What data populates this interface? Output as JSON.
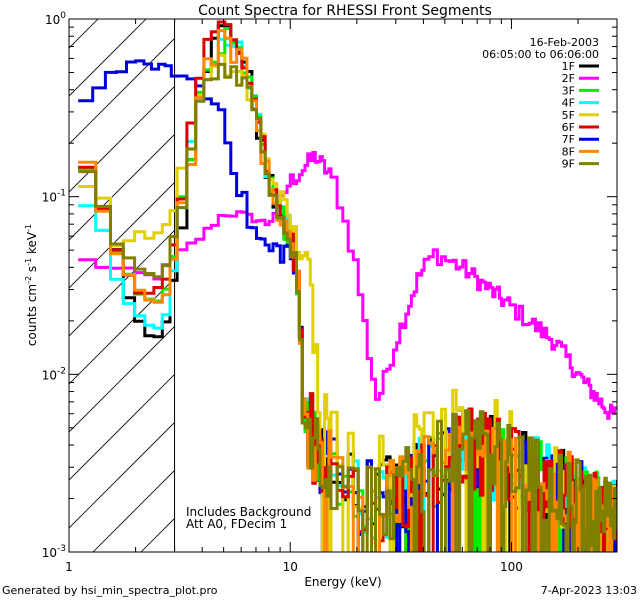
{
  "chart_data": {
    "type": "line",
    "title": "Count Spectra for RHESSI Front Segments",
    "xlabel": "Energy (keV)",
    "ylabel_main": "counts cm",
    "ylabel_sup1": "-2",
    "ylabel_mid": " s",
    "ylabel_sup2": "-1",
    "ylabel_end": " keV",
    "ylabel_sup3": "-1",
    "xscale": "log",
    "yscale": "log",
    "xlim": [
      1,
      300
    ],
    "ylim": [
      0.001,
      1
    ],
    "x_ticks": [
      {
        "value": 1,
        "label": "1"
      },
      {
        "value": 10,
        "label": "10"
      },
      {
        "value": 100,
        "label": "100"
      }
    ],
    "y_ticks": [
      {
        "value": 0.001,
        "base": "10",
        "exp": "-3"
      },
      {
        "value": 0.01,
        "base": "10",
        "exp": "-2"
      },
      {
        "value": 0.1,
        "base": "10",
        "exp": "-1"
      },
      {
        "value": 1,
        "base": "10",
        "exp": "0"
      }
    ],
    "hatched_region": {
      "xmin": 1,
      "xmax": 3
    },
    "date": "16-Feb-2003",
    "time_range": "06:05:00 to 06:06:00",
    "notes": [
      "Includes Background",
      "Att A0, FDecim 1"
    ],
    "footer_left": "Generated by hsi_min_spectra_plot.pro",
    "footer_right": "7-Apr-2023 13:03",
    "series": [
      {
        "name": "1F",
        "color": "#000000"
      },
      {
        "name": "2F",
        "color": "#ff00ff"
      },
      {
        "name": "3F",
        "color": "#00ee00"
      },
      {
        "name": "4F",
        "color": "#00ffff"
      },
      {
        "name": "5F",
        "color": "#e0d000"
      },
      {
        "name": "6F",
        "color": "#dd0000"
      },
      {
        "name": "7F",
        "color": "#0000dd"
      },
      {
        "name": "8F",
        "color": "#ff8800"
      },
      {
        "name": "9F",
        "color": "#808000"
      }
    ],
    "profiles": {
      "1F": [
        [
          1.1,
          0.2
        ],
        [
          1.4,
          0.09
        ],
        [
          1.7,
          0.045
        ],
        [
          2,
          0.02
        ],
        [
          2.4,
          0.016
        ],
        [
          2.8,
          0.02
        ],
        [
          3.4,
          0.12
        ],
        [
          4,
          0.5
        ],
        [
          5,
          0.9
        ],
        [
          6,
          0.7
        ],
        [
          7,
          0.3
        ],
        [
          8,
          0.12
        ],
        [
          9,
          0.08
        ],
        [
          10,
          0.06
        ],
        [
          11,
          0.03
        ],
        [
          11.5,
          0.006
        ],
        [
          13,
          0.004
        ],
        [
          20,
          0.002
        ],
        [
          30,
          0.002
        ],
        [
          60,
          0.004
        ],
        [
          100,
          0.003
        ],
        [
          200,
          0.002
        ],
        [
          280,
          0.0015
        ]
      ],
      "2F": [
        [
          1.1,
          0.045
        ],
        [
          1.5,
          0.04
        ],
        [
          2.5,
          0.035
        ],
        [
          3,
          0.045
        ],
        [
          4,
          0.06
        ],
        [
          5,
          0.08
        ],
        [
          6,
          0.08
        ],
        [
          8,
          0.07
        ],
        [
          10,
          0.12
        ],
        [
          13,
          0.17
        ],
        [
          16,
          0.12
        ],
        [
          20,
          0.04
        ],
        [
          23,
          0.012
        ],
        [
          25,
          0.007
        ],
        [
          30,
          0.015
        ],
        [
          38,
          0.035
        ],
        [
          45,
          0.048
        ],
        [
          60,
          0.04
        ],
        [
          80,
          0.03
        ],
        [
          120,
          0.02
        ],
        [
          160,
          0.015
        ],
        [
          200,
          0.01
        ],
        [
          280,
          0.006
        ]
      ],
      "3F": [
        [
          1.1,
          0.2
        ],
        [
          1.4,
          0.09
        ],
        [
          1.7,
          0.045
        ],
        [
          2,
          0.03
        ],
        [
          2.4,
          0.025
        ],
        [
          2.8,
          0.03
        ],
        [
          3.4,
          0.12
        ],
        [
          4,
          0.45
        ],
        [
          5,
          0.8
        ],
        [
          6,
          0.6
        ],
        [
          7,
          0.3
        ],
        [
          8,
          0.12
        ],
        [
          9,
          0.08
        ],
        [
          10,
          0.06
        ],
        [
          11,
          0.03
        ],
        [
          11.5,
          0.006
        ],
        [
          13,
          0.004
        ],
        [
          20,
          0.002
        ],
        [
          30,
          0.002
        ],
        [
          60,
          0.004
        ],
        [
          100,
          0.003
        ],
        [
          200,
          0.002
        ],
        [
          280,
          0.0015
        ]
      ],
      "4F": [
        [
          1.1,
          0.1
        ],
        [
          1.4,
          0.07
        ],
        [
          1.7,
          0.03
        ],
        [
          2,
          0.022
        ],
        [
          2.4,
          0.018
        ],
        [
          2.8,
          0.022
        ],
        [
          3.4,
          0.12
        ],
        [
          4,
          0.45
        ],
        [
          5,
          0.8
        ],
        [
          6,
          0.65
        ],
        [
          7,
          0.3
        ],
        [
          8,
          0.12
        ],
        [
          9,
          0.08
        ],
        [
          10,
          0.06
        ],
        [
          11,
          0.03
        ],
        [
          11.5,
          0.006
        ],
        [
          13,
          0.004
        ],
        [
          20,
          0.002
        ],
        [
          30,
          0.002
        ],
        [
          60,
          0.004
        ],
        [
          100,
          0.003
        ],
        [
          200,
          0.002
        ],
        [
          280,
          0.0015
        ]
      ],
      "5F": [
        [
          1.1,
          0.13
        ],
        [
          1.4,
          0.1
        ],
        [
          1.7,
          0.05
        ],
        [
          2,
          0.06
        ],
        [
          2.4,
          0.06
        ],
        [
          2.8,
          0.07
        ],
        [
          3.4,
          0.15
        ],
        [
          4,
          0.4
        ],
        [
          5,
          0.55
        ],
        [
          6,
          0.5
        ],
        [
          7,
          0.3
        ],
        [
          8,
          0.15
        ],
        [
          9,
          0.1
        ],
        [
          10,
          0.07
        ],
        [
          12,
          0.04
        ],
        [
          13,
          0.012
        ],
        [
          14,
          0.006
        ],
        [
          20,
          0.003
        ],
        [
          30,
          0.003
        ],
        [
          60,
          0.005
        ],
        [
          100,
          0.004
        ],
        [
          200,
          0.002
        ],
        [
          280,
          0.0015
        ]
      ],
      "6F": [
        [
          1.1,
          0.2
        ],
        [
          1.4,
          0.09
        ],
        [
          1.7,
          0.045
        ],
        [
          2,
          0.03
        ],
        [
          2.4,
          0.028
        ],
        [
          2.8,
          0.035
        ],
        [
          3.4,
          0.15
        ],
        [
          4,
          0.6
        ],
        [
          5,
          0.9
        ],
        [
          6,
          0.75
        ],
        [
          7,
          0.35
        ],
        [
          8,
          0.13
        ],
        [
          9,
          0.08
        ],
        [
          10,
          0.06
        ],
        [
          11,
          0.03
        ],
        [
          11.5,
          0.006
        ],
        [
          13,
          0.004
        ],
        [
          20,
          0.002
        ],
        [
          30,
          0.002
        ],
        [
          60,
          0.004
        ],
        [
          100,
          0.003
        ],
        [
          200,
          0.002
        ],
        [
          280,
          0.0015
        ]
      ],
      "7F": [
        [
          1.1,
          0.3
        ],
        [
          1.4,
          0.45
        ],
        [
          1.7,
          0.52
        ],
        [
          2,
          0.55
        ],
        [
          2.5,
          0.55
        ],
        [
          3,
          0.5
        ],
        [
          4,
          0.4
        ],
        [
          5,
          0.3
        ],
        [
          6,
          0.1
        ],
        [
          7,
          0.06
        ],
        [
          8,
          0.05
        ],
        [
          9,
          0.05
        ],
        [
          10,
          0.05
        ],
        [
          11,
          0.03
        ],
        [
          11.5,
          0.006
        ],
        [
          13,
          0.004
        ],
        [
          20,
          0.002
        ],
        [
          30,
          0.002
        ],
        [
          60,
          0.004
        ],
        [
          100,
          0.003
        ],
        [
          200,
          0.002
        ],
        [
          280,
          0.0015
        ]
      ],
      "8F": [
        [
          1.1,
          0.2
        ],
        [
          1.4,
          0.09
        ],
        [
          1.7,
          0.045
        ],
        [
          2,
          0.03
        ],
        [
          2.4,
          0.025
        ],
        [
          2.8,
          0.03
        ],
        [
          3.4,
          0.12
        ],
        [
          4,
          0.45
        ],
        [
          5,
          0.8
        ],
        [
          6,
          0.6
        ],
        [
          7,
          0.3
        ],
        [
          8,
          0.12
        ],
        [
          9,
          0.08
        ],
        [
          10,
          0.06
        ],
        [
          11,
          0.03
        ],
        [
          11.5,
          0.006
        ],
        [
          13,
          0.004
        ],
        [
          20,
          0.002
        ],
        [
          30,
          0.002
        ],
        [
          60,
          0.004
        ],
        [
          100,
          0.003
        ],
        [
          200,
          0.002
        ],
        [
          280,
          0.0015
        ]
      ],
      "9F": [
        [
          1.1,
          0.18
        ],
        [
          1.4,
          0.09
        ],
        [
          1.7,
          0.05
        ],
        [
          2,
          0.04
        ],
        [
          2.4,
          0.035
        ],
        [
          2.8,
          0.04
        ],
        [
          3.4,
          0.13
        ],
        [
          4,
          0.4
        ],
        [
          5,
          0.55
        ],
        [
          6,
          0.5
        ],
        [
          7,
          0.3
        ],
        [
          8,
          0.13
        ],
        [
          9,
          0.08
        ],
        [
          10,
          0.06
        ],
        [
          11,
          0.03
        ],
        [
          11.5,
          0.006
        ],
        [
          13,
          0.004
        ],
        [
          20,
          0.002
        ],
        [
          30,
          0.002
        ],
        [
          60,
          0.004
        ],
        [
          100,
          0.003
        ],
        [
          200,
          0.002
        ],
        [
          280,
          0.0015
        ]
      ]
    }
  }
}
